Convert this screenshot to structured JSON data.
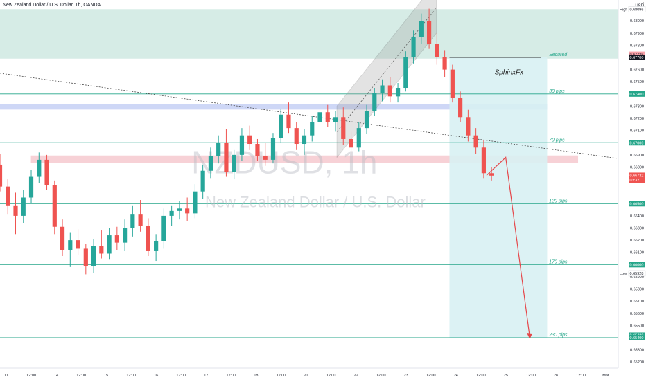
{
  "header": {
    "title": "New Zealand Dollar / U.S. Dollar, 1h, OANDA",
    "currency": "USD",
    "menu_icon": "dots-menu-icon"
  },
  "watermark": {
    "symbol": "NZDUSD, 1h",
    "name": "New Zealand Dollar / U.S. Dollar"
  },
  "author_tag": "SphinxFx",
  "colors": {
    "zone_green": "#cfe9e2",
    "zone_blue": "#c6d0f5",
    "zone_red": "#f6c9cf",
    "target_area": "#d8f1f3",
    "level_line": "#26a68a",
    "bull_candle": "#26a69a",
    "bear_candle": "#ef5350",
    "projection": "#e5474a",
    "dark_line": "#333333"
  },
  "chart_data": {
    "type": "candlestick",
    "timeframe": "1h",
    "symbol": "NZDUSD",
    "ylim": [
      0.6515,
      0.6816
    ],
    "x_ticks": [
      "11",
      "12:00",
      "14",
      "12:00",
      "15",
      "12:00",
      "16",
      "12:00",
      "17",
      "12:00",
      "18",
      "12:00",
      "21",
      "12:00",
      "22",
      "12:00",
      "23",
      "12:00",
      "24",
      "12:00",
      "25",
      "12:00",
      "28",
      "12:00",
      "Mar"
    ],
    "y_ticks": [
      "0.68100",
      "0.68000",
      "0.67900",
      "0.67800",
      "0.67600",
      "0.67500",
      "0.67300",
      "0.67200",
      "0.67100",
      "0.66900",
      "0.66800",
      "0.66700",
      "0.66400",
      "0.66300",
      "0.66200",
      "0.66100",
      "0.65900",
      "0.65800",
      "0.65700",
      "0.65600",
      "0.65500",
      "0.65300",
      "0.65200"
    ],
    "price_labels": [
      {
        "text": "0.68096",
        "tag": "High",
        "value": 0.68096,
        "color": "#ffffff",
        "text_color": "#131722"
      },
      {
        "text": "0.67725",
        "value": 0.67725,
        "color": "#f7a1a8",
        "text_color": "#131722"
      },
      {
        "text": "0.67700",
        "value": 0.677,
        "color": "#131722",
        "text_color": "#ffffff"
      },
      {
        "text": "0.67400",
        "value": 0.674,
        "color": "#26a68a",
        "text_color": "#ffffff"
      },
      {
        "text": "0.67000",
        "value": 0.67,
        "color": "#26a68a",
        "text_color": "#ffffff"
      },
      {
        "text": "0.66732",
        "value": 0.66732,
        "color": "#ef5350",
        "text_color": "#ffffff"
      },
      {
        "text": "03:32",
        "value": 0.66694,
        "color": "#ef5350",
        "text_color": "#ffffff"
      },
      {
        "text": "0.66500",
        "value": 0.665,
        "color": "#26a68a",
        "text_color": "#ffffff"
      },
      {
        "text": "0.66000",
        "value": 0.66,
        "color": "#26a68a",
        "text_color": "#ffffff"
      },
      {
        "text": "0.65928",
        "tag": "Low",
        "value": 0.65928,
        "color": "#ffffff",
        "text_color": "#131722"
      },
      {
        "text": "0.65420",
        "value": 0.6542,
        "color": "#26a68a",
        "text_color": "#ffffff"
      },
      {
        "text": "0.65400",
        "value": 0.654,
        "color": "#26a68a",
        "text_color": "#ffffff"
      }
    ],
    "levels": [
      {
        "label": "Secured",
        "value": 0.677
      },
      {
        "label": "30 pips",
        "value": 0.674
      },
      {
        "label": "70 pips",
        "value": 0.67
      },
      {
        "label": "120 pips",
        "value": 0.665
      },
      {
        "label": "170 pips",
        "value": 0.66
      },
      {
        "label": "230 pips",
        "value": 0.654
      }
    ],
    "zones": [
      {
        "name": "supply-zone",
        "y_top": 0.68096,
        "y_bottom": 0.6769,
        "x_from": 0.0,
        "x_to": 1.0,
        "color": "#cfe9e2"
      },
      {
        "name": "blue-zone",
        "y_top": 0.67318,
        "y_bottom": 0.67272,
        "x_from": 0.0,
        "x_to": 0.885,
        "color": "#c6d0f5"
      },
      {
        "name": "red-zone",
        "y_top": 0.66895,
        "y_bottom": 0.66835,
        "x_from": 0.05,
        "x_to": 0.935,
        "color": "#f6c9cf"
      }
    ],
    "current_price": 0.66732,
    "high": 0.68096,
    "low": 0.65928,
    "projection": [
      {
        "x": 0.787,
        "y": 0.66732
      },
      {
        "x": 0.818,
        "y": 0.6688
      },
      {
        "x": 0.857,
        "y": 0.654
      }
    ],
    "trendline": {
      "from": {
        "x": 0.0,
        "y": 0.6757
      },
      "to": {
        "x": 1.0,
        "y": 0.6687
      }
    },
    "channel": {
      "start": {
        "x": 0.545,
        "y": 0.6709
      },
      "end": {
        "x": 0.706,
        "y": 0.6811
      },
      "width": 0.0021
    },
    "ohlc": [
      {
        "o": 0.6682,
        "h": 0.6691,
        "l": 0.666,
        "c": 0.6664
      },
      {
        "o": 0.6664,
        "h": 0.667,
        "l": 0.6641,
        "c": 0.6648
      },
      {
        "o": 0.6648,
        "h": 0.6659,
        "l": 0.6625,
        "c": 0.664
      },
      {
        "o": 0.664,
        "h": 0.6661,
        "l": 0.6634,
        "c": 0.6655
      },
      {
        "o": 0.6655,
        "h": 0.6678,
        "l": 0.665,
        "c": 0.6672
      },
      {
        "o": 0.6672,
        "h": 0.6692,
        "l": 0.6667,
        "c": 0.6686
      },
      {
        "o": 0.6686,
        "h": 0.669,
        "l": 0.6661,
        "c": 0.6665
      },
      {
        "o": 0.6665,
        "h": 0.6669,
        "l": 0.6625,
        "c": 0.6631
      },
      {
        "o": 0.6631,
        "h": 0.6637,
        "l": 0.6607,
        "c": 0.6612
      },
      {
        "o": 0.6612,
        "h": 0.6626,
        "l": 0.6598,
        "c": 0.662
      },
      {
        "o": 0.662,
        "h": 0.6629,
        "l": 0.6608,
        "c": 0.6613
      },
      {
        "o": 0.6613,
        "h": 0.6617,
        "l": 0.6592,
        "c": 0.6599
      },
      {
        "o": 0.6599,
        "h": 0.6621,
        "l": 0.6593,
        "c": 0.6615
      },
      {
        "o": 0.6615,
        "h": 0.6628,
        "l": 0.6605,
        "c": 0.6609
      },
      {
        "o": 0.6609,
        "h": 0.663,
        "l": 0.6604,
        "c": 0.6624
      },
      {
        "o": 0.6624,
        "h": 0.6631,
        "l": 0.6612,
        "c": 0.6618
      },
      {
        "o": 0.6618,
        "h": 0.6637,
        "l": 0.6611,
        "c": 0.663
      },
      {
        "o": 0.663,
        "h": 0.6648,
        "l": 0.6623,
        "c": 0.6641
      },
      {
        "o": 0.6641,
        "h": 0.6653,
        "l": 0.6627,
        "c": 0.6632
      },
      {
        "o": 0.6632,
        "h": 0.6638,
        "l": 0.6607,
        "c": 0.6611
      },
      {
        "o": 0.6611,
        "h": 0.6625,
        "l": 0.6603,
        "c": 0.6619
      },
      {
        "o": 0.6619,
        "h": 0.6646,
        "l": 0.6613,
        "c": 0.664
      },
      {
        "o": 0.664,
        "h": 0.6648,
        "l": 0.6632,
        "c": 0.6644
      },
      {
        "o": 0.6644,
        "h": 0.6652,
        "l": 0.6637,
        "c": 0.6646
      },
      {
        "o": 0.6646,
        "h": 0.6655,
        "l": 0.6636,
        "c": 0.6642
      },
      {
        "o": 0.6642,
        "h": 0.6666,
        "l": 0.6638,
        "c": 0.666
      },
      {
        "o": 0.666,
        "h": 0.6682,
        "l": 0.6654,
        "c": 0.6677
      },
      {
        "o": 0.6677,
        "h": 0.6696,
        "l": 0.6671,
        "c": 0.6689
      },
      {
        "o": 0.6689,
        "h": 0.6706,
        "l": 0.6683,
        "c": 0.67
      },
      {
        "o": 0.67,
        "h": 0.6711,
        "l": 0.6672,
        "c": 0.6676
      },
      {
        "o": 0.6676,
        "h": 0.6694,
        "l": 0.667,
        "c": 0.669
      },
      {
        "o": 0.669,
        "h": 0.6712,
        "l": 0.6685,
        "c": 0.6706
      },
      {
        "o": 0.6706,
        "h": 0.6714,
        "l": 0.6694,
        "c": 0.6699
      },
      {
        "o": 0.6699,
        "h": 0.6703,
        "l": 0.6685,
        "c": 0.6689
      },
      {
        "o": 0.6689,
        "h": 0.67,
        "l": 0.6681,
        "c": 0.6686
      },
      {
        "o": 0.6686,
        "h": 0.6708,
        "l": 0.6683,
        "c": 0.6704
      },
      {
        "o": 0.6704,
        "h": 0.6728,
        "l": 0.67,
        "c": 0.6723
      },
      {
        "o": 0.6723,
        "h": 0.6733,
        "l": 0.6708,
        "c": 0.6712
      },
      {
        "o": 0.6712,
        "h": 0.6717,
        "l": 0.6694,
        "c": 0.6699
      },
      {
        "o": 0.6699,
        "h": 0.6711,
        "l": 0.669,
        "c": 0.6706
      },
      {
        "o": 0.6706,
        "h": 0.6722,
        "l": 0.6701,
        "c": 0.6717
      },
      {
        "o": 0.6717,
        "h": 0.673,
        "l": 0.6712,
        "c": 0.6725
      },
      {
        "o": 0.6725,
        "h": 0.6731,
        "l": 0.6713,
        "c": 0.6717
      },
      {
        "o": 0.6717,
        "h": 0.6726,
        "l": 0.6709,
        "c": 0.6721
      },
      {
        "o": 0.6721,
        "h": 0.6729,
        "l": 0.6698,
        "c": 0.6703
      },
      {
        "o": 0.6703,
        "h": 0.6709,
        "l": 0.669,
        "c": 0.6696
      },
      {
        "o": 0.6696,
        "h": 0.6717,
        "l": 0.6693,
        "c": 0.6712
      },
      {
        "o": 0.6712,
        "h": 0.6731,
        "l": 0.6707,
        "c": 0.6726
      },
      {
        "o": 0.6726,
        "h": 0.6745,
        "l": 0.6722,
        "c": 0.6741
      },
      {
        "o": 0.6741,
        "h": 0.6752,
        "l": 0.6734,
        "c": 0.6747
      },
      {
        "o": 0.6747,
        "h": 0.6754,
        "l": 0.6733,
        "c": 0.6738
      },
      {
        "o": 0.6738,
        "h": 0.6749,
        "l": 0.6733,
        "c": 0.6745
      },
      {
        "o": 0.6745,
        "h": 0.6775,
        "l": 0.6742,
        "c": 0.677
      },
      {
        "o": 0.677,
        "h": 0.6792,
        "l": 0.6765,
        "c": 0.6787
      },
      {
        "o": 0.6787,
        "h": 0.6806,
        "l": 0.6781,
        "c": 0.68
      },
      {
        "o": 0.68,
        "h": 0.681,
        "l": 0.6777,
        "c": 0.6781
      },
      {
        "o": 0.6781,
        "h": 0.679,
        "l": 0.6764,
        "c": 0.677
      },
      {
        "o": 0.677,
        "h": 0.6776,
        "l": 0.6754,
        "c": 0.676
      },
      {
        "o": 0.676,
        "h": 0.6764,
        "l": 0.6733,
        "c": 0.6737
      },
      {
        "o": 0.6737,
        "h": 0.6742,
        "l": 0.6717,
        "c": 0.6721
      },
      {
        "o": 0.6721,
        "h": 0.6727,
        "l": 0.6701,
        "c": 0.6706
      },
      {
        "o": 0.6706,
        "h": 0.6712,
        "l": 0.6691,
        "c": 0.6696
      },
      {
        "o": 0.6696,
        "h": 0.6702,
        "l": 0.6671,
        "c": 0.6675
      },
      {
        "o": 0.6675,
        "h": 0.668,
        "l": 0.6669,
        "c": 0.6673
      }
    ]
  }
}
